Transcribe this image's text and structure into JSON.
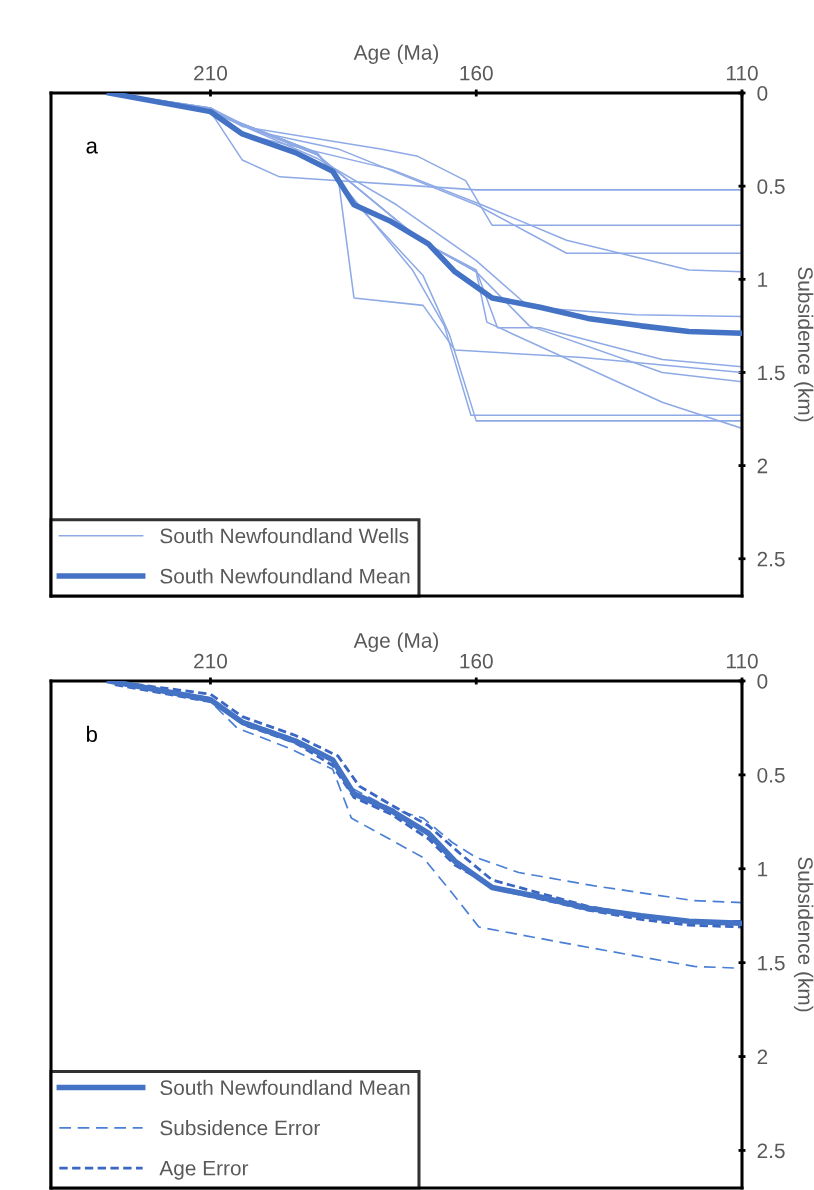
{
  "chart_data": [
    {
      "type": "line",
      "xlabel": "Age (Ma)",
      "ylabel": "Subsidence (km)",
      "annotations": [
        "a"
      ],
      "xlim": [
        240,
        110
      ],
      "ylim": [
        2.7,
        0
      ],
      "xticks": [
        210,
        160,
        110
      ],
      "yticks": [
        0,
        0.5,
        1,
        1.5,
        2,
        2.5
      ],
      "grid": false,
      "legend": "bottom left",
      "marker": "none",
      "series": [
        {
          "name": "South Newfoundland Wells",
          "color": "#8eaae6",
          "line_style": "solid",
          "x": [
            229,
            210,
            204,
            197,
            160,
            110
          ],
          "values": [
            0,
            0.1,
            0.36,
            0.45,
            0.52,
            0.52
          ]
        },
        {
          "color": "#8eaae6",
          "line_style": "solid",
          "x": [
            229,
            210,
            204,
            178,
            171,
            162,
            157,
            110
          ],
          "values": [
            0,
            0.08,
            0.18,
            0.3,
            0.34,
            0.47,
            0.71,
            0.71
          ]
        },
        {
          "color": "#8eaae6",
          "line_style": "solid",
          "x": [
            229,
            210,
            201,
            186,
            160,
            143,
            110
          ],
          "values": [
            0,
            0.08,
            0.21,
            0.3,
            0.6,
            0.86,
            0.86
          ]
        },
        {
          "color": "#8eaae6",
          "line_style": "solid",
          "x": [
            229,
            210,
            204,
            176,
            159,
            143,
            120,
            110
          ],
          "values": [
            0,
            0.08,
            0.22,
            0.41,
            0.6,
            0.79,
            0.95,
            0.96
          ]
        },
        {
          "color": "#8eaae6",
          "line_style": "solid",
          "x": [
            229,
            210,
            190,
            175,
            160,
            150,
            130,
            110
          ],
          "values": [
            0,
            0.1,
            0.35,
            0.6,
            0.9,
            1.15,
            1.19,
            1.2
          ]
        },
        {
          "color": "#8eaae6",
          "line_style": "solid",
          "x": [
            229,
            210,
            190,
            186,
            183,
            170,
            164,
            140,
            110
          ],
          "values": [
            0,
            0.1,
            0.32,
            0.45,
            1.1,
            1.14,
            1.38,
            1.42,
            1.5
          ]
        },
        {
          "color": "#8eaae6",
          "line_style": "solid",
          "x": [
            229,
            210,
            190,
            185,
            172,
            166,
            161,
            110
          ],
          "values": [
            0,
            0.1,
            0.32,
            0.5,
            0.95,
            1.25,
            1.73,
            1.73
          ]
        },
        {
          "color": "#8eaae6",
          "line_style": "solid",
          "x": [
            229,
            210,
            190,
            184,
            170,
            165,
            160,
            110
          ],
          "values": [
            0,
            0.1,
            0.32,
            0.55,
            0.98,
            1.3,
            1.76,
            1.76
          ]
        },
        {
          "color": "#8eaae6",
          "line_style": "solid",
          "x": [
            229,
            210,
            190,
            170,
            160,
            156,
            148,
            125,
            110
          ],
          "values": [
            0,
            0.1,
            0.33,
            0.8,
            0.95,
            1.26,
            1.26,
            1.43,
            1.47
          ]
        },
        {
          "color": "#8eaae6",
          "line_style": "solid",
          "x": [
            229,
            210,
            190,
            170,
            160,
            158,
            125,
            110
          ],
          "values": [
            0,
            0.1,
            0.33,
            0.8,
            0.96,
            1.23,
            1.66,
            1.8
          ]
        },
        {
          "color": "#8eaae6",
          "line_style": "solid",
          "x": [
            229,
            210,
            190,
            170,
            160,
            150,
            125,
            110
          ],
          "values": [
            0,
            0.1,
            0.33,
            0.8,
            0.96,
            1.25,
            1.5,
            1.55
          ]
        },
        {
          "name": "South Newfoundland Mean",
          "color": "#4472c4",
          "line_style": "solid",
          "x": [
            229,
            210,
            204,
            194,
            187,
            183,
            176,
            169,
            164,
            157,
            148,
            139,
            129,
            120,
            110
          ],
          "values": [
            0,
            0.1,
            0.22,
            0.32,
            0.42,
            0.6,
            0.69,
            0.81,
            0.96,
            1.1,
            1.15,
            1.21,
            1.25,
            1.28,
            1.29
          ]
        }
      ]
    },
    {
      "type": "line",
      "xlabel": "Age (Ma)",
      "ylabel": "Subsidence (km)",
      "annotations": [
        "b"
      ],
      "xlim": [
        240,
        110
      ],
      "ylim": [
        2.7,
        0
      ],
      "xticks": [
        210,
        160,
        110
      ],
      "yticks": [
        0,
        0.5,
        1,
        1.5,
        2,
        2.5
      ],
      "grid": false,
      "legend": "bottom left",
      "marker": "none",
      "series": [
        {
          "name": "South Newfoundland Mean",
          "color": "#4472c4",
          "line_style": "solid",
          "x": [
            229,
            210,
            204,
            194,
            187,
            183,
            176,
            169,
            164,
            157,
            148,
            139,
            129,
            120,
            110
          ],
          "values": [
            0,
            0.1,
            0.22,
            0.32,
            0.42,
            0.6,
            0.69,
            0.81,
            0.96,
            1.1,
            1.15,
            1.21,
            1.25,
            1.28,
            1.29
          ]
        },
        {
          "name": "Subsidence Error",
          "color": "#4a7fd6",
          "line_style": "dashed",
          "x": [
            229,
            210,
            205,
            195,
            187,
            183.5,
            176,
            170,
            164.5,
            160,
            152,
            138,
            119,
            110
          ],
          "values": [
            0,
            0.09,
            0.2,
            0.3,
            0.42,
            0.57,
            0.68,
            0.73,
            0.86,
            0.94,
            1.02,
            1.09,
            1.17,
            1.18
          ]
        },
        {
          "color": "#4a7fd6",
          "line_style": "dashed",
          "x": [
            229,
            210,
            205,
            195,
            187,
            183.5,
            170,
            164.5,
            159.5,
            142.5,
            119,
            110
          ],
          "values": [
            0,
            0.11,
            0.25,
            0.36,
            0.47,
            0.73,
            0.94,
            1.13,
            1.31,
            1.4,
            1.52,
            1.53
          ]
        },
        {
          "name": "Age Error",
          "color": "#3a66c4",
          "line_style": "dotted",
          "x": [
            229,
            210,
            204,
            194,
            186,
            182,
            176,
            169,
            163,
            157,
            148,
            139,
            129,
            120,
            110
          ],
          "values": [
            0,
            0.07,
            0.19,
            0.29,
            0.4,
            0.56,
            0.66,
            0.77,
            0.92,
            1.06,
            1.13,
            1.2,
            1.25,
            1.28,
            1.28
          ]
        },
        {
          "color": "#3a66c4",
          "line_style": "dotted",
          "x": [
            228,
            210,
            203,
            194,
            187,
            183,
            176,
            169,
            164,
            156,
            148,
            139,
            129,
            120,
            110
          ],
          "values": [
            0.02,
            0.11,
            0.24,
            0.33,
            0.45,
            0.62,
            0.71,
            0.84,
            0.98,
            1.11,
            1.16,
            1.22,
            1.27,
            1.3,
            1.31
          ]
        }
      ]
    }
  ]
}
